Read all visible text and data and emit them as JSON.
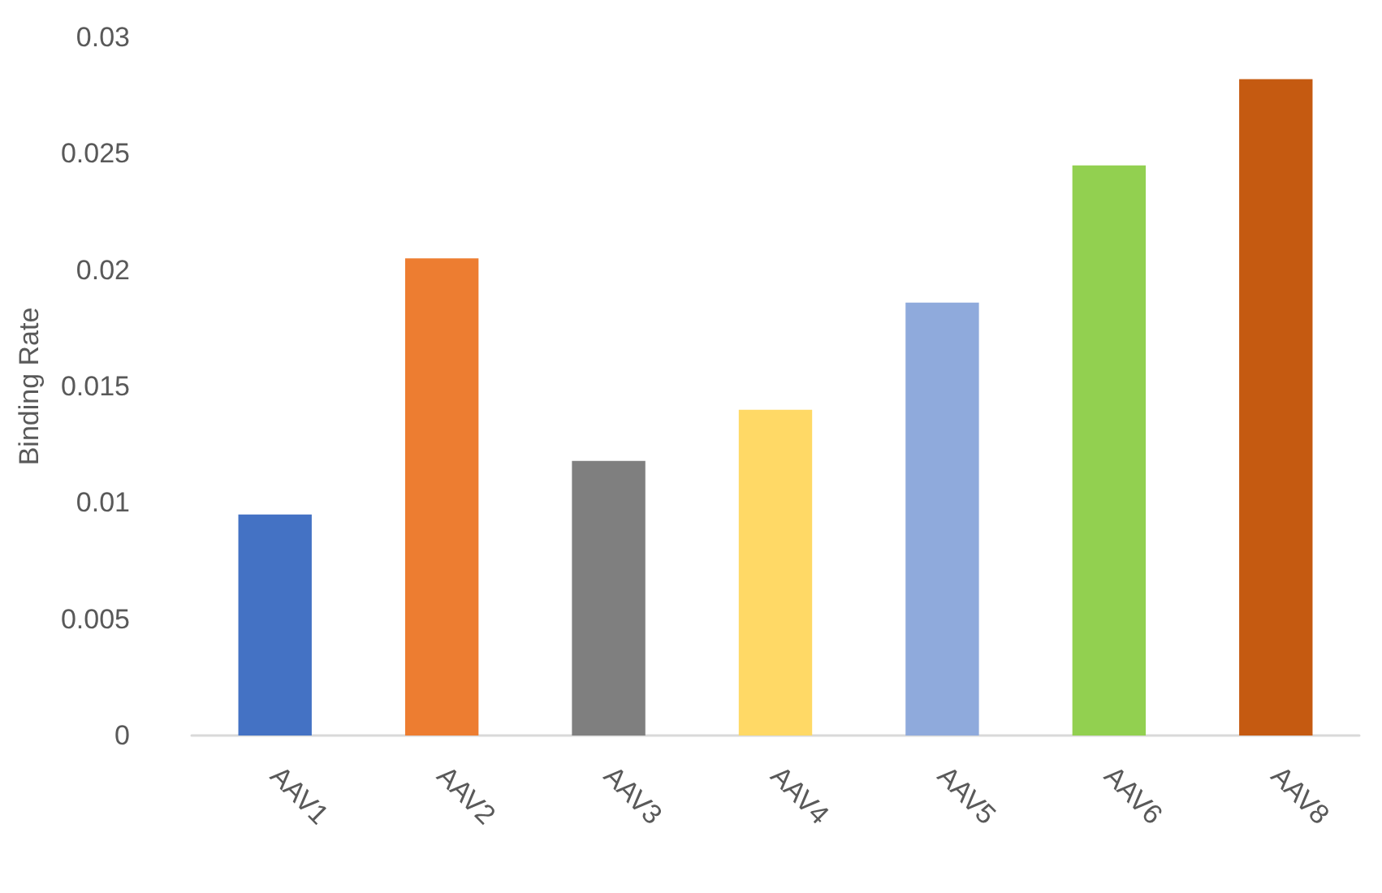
{
  "chart_data": {
    "type": "bar",
    "ylabel": "Binding Rate",
    "categories": [
      "AAV1",
      "AAV2",
      "AAV3",
      "AAV4",
      "AAV5",
      "AAV6",
      "AAV8"
    ],
    "values": [
      0.0095,
      0.0205,
      0.0118,
      0.014,
      0.0186,
      0.0245,
      0.0282
    ],
    "colors": [
      "#4472c4",
      "#ed7d31",
      "#7f7f7f",
      "#ffd966",
      "#8faadc",
      "#92d050",
      "#c55a11"
    ],
    "ylim": [
      0,
      0.03
    ],
    "yticks": [
      0,
      0.005,
      0.01,
      0.015,
      0.02,
      0.025,
      0.03
    ]
  }
}
